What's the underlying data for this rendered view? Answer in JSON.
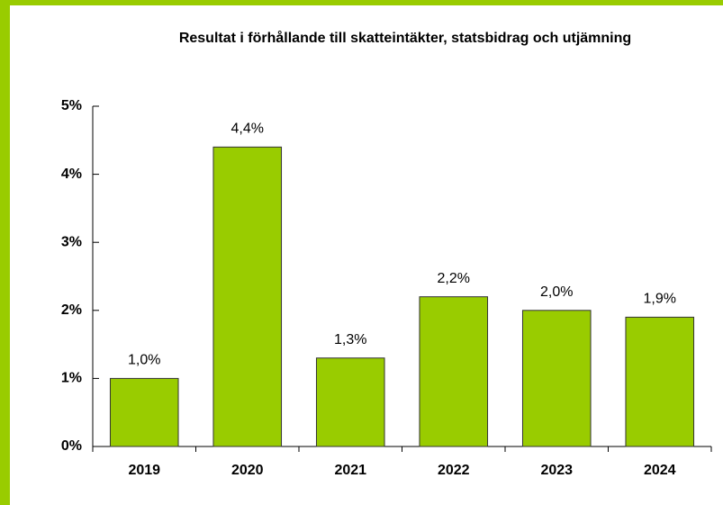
{
  "chart_data": {
    "type": "bar",
    "title": "Resultat i förhållande till skatteintäkter, statsbidrag och utjämning",
    "categories": [
      "2019",
      "2020",
      "2021",
      "2022",
      "2023",
      "2024"
    ],
    "values": [
      1.0,
      4.4,
      1.3,
      2.2,
      2.0,
      1.9
    ],
    "value_labels": [
      "1,0%",
      "4,4%",
      "1,3%",
      "2,2%",
      "2,0%",
      "1,9%"
    ],
    "color": "#99cc00",
    "ylim": [
      0,
      5
    ],
    "yticks": [
      {
        "value": 0,
        "label": "0%"
      },
      {
        "value": 1,
        "label": "1%"
      },
      {
        "value": 2,
        "label": "2%"
      },
      {
        "value": 3,
        "label": "3%"
      },
      {
        "value": 4,
        "label": "4%"
      },
      {
        "value": 5,
        "label": "5%"
      }
    ],
    "grid": false
  }
}
